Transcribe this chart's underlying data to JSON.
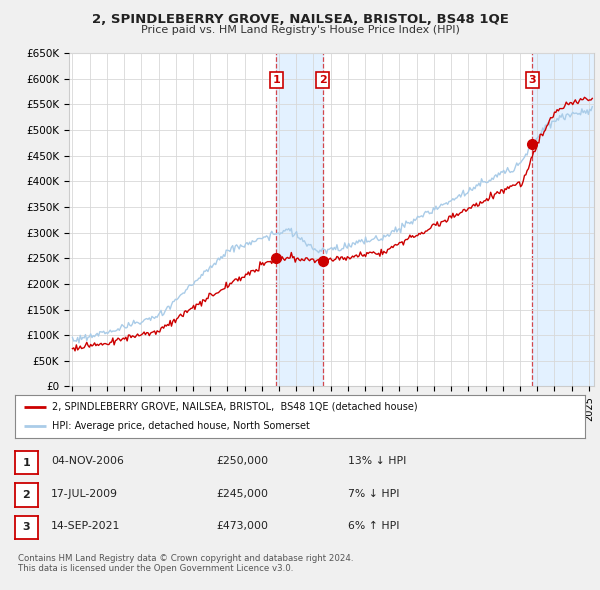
{
  "title": "2, SPINDLEBERRY GROVE, NAILSEA, BRISTOL, BS48 1QE",
  "subtitle": "Price paid vs. HM Land Registry's House Price Index (HPI)",
  "ylim": [
    0,
    650000
  ],
  "yticks": [
    0,
    50000,
    100000,
    150000,
    200000,
    250000,
    300000,
    350000,
    400000,
    450000,
    500000,
    550000,
    600000,
    650000
  ],
  "ytick_labels": [
    "£0",
    "£50K",
    "£100K",
    "£150K",
    "£200K",
    "£250K",
    "£300K",
    "£350K",
    "£400K",
    "£450K",
    "£500K",
    "£550K",
    "£600K",
    "£650K"
  ],
  "hpi_color": "#aacce8",
  "price_color": "#cc0000",
  "background_color": "#f0f0f0",
  "plot_bg_color": "#ffffff",
  "grid_color": "#d8d8d8",
  "sale1_x": 2006.84,
  "sale1_y": 250000,
  "sale1_label": "1",
  "sale2_x": 2009.54,
  "sale2_y": 245000,
  "sale2_label": "2",
  "sale3_x": 2021.71,
  "sale3_y": 473000,
  "sale3_label": "3",
  "legend_line1": "2, SPINDLEBERRY GROVE, NAILSEA, BRISTOL,  BS48 1QE (detached house)",
  "legend_line2": "HPI: Average price, detached house, North Somerset",
  "table_rows": [
    {
      "num": "1",
      "date": "04-NOV-2006",
      "price": "£250,000",
      "hpi": "13% ↓ HPI"
    },
    {
      "num": "2",
      "date": "17-JUL-2009",
      "price": "£245,000",
      "hpi": "7% ↓ HPI"
    },
    {
      "num": "3",
      "date": "14-SEP-2021",
      "price": "£473,000",
      "hpi": "6% ↑ HPI"
    }
  ],
  "footnote1": "Contains HM Land Registry data © Crown copyright and database right 2024.",
  "footnote2": "This data is licensed under the Open Government Licence v3.0.",
  "vline_color": "#cc0000",
  "highlight_color": "#ddeeff",
  "xlim_left": 1994.8,
  "xlim_right": 2025.3
}
